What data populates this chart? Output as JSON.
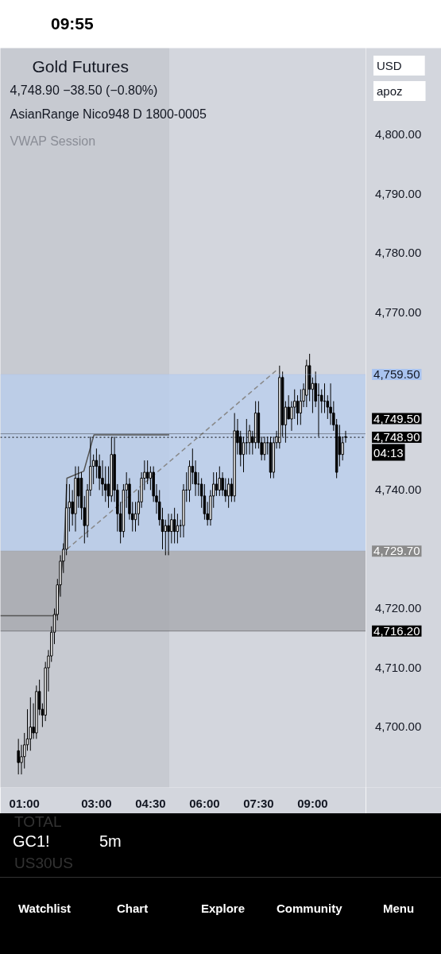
{
  "chart_data": {
    "type": "candlestick",
    "title": "Gold Futures",
    "subtitle": "4,748.90 −38.50 (−0.80%)",
    "annotations": [
      "AsianRange Nico948 D 1800-0005",
      "VWAP Session",
      "USD",
      "apoz",
      "04:13",
      "09:55",
      "TOTAL",
      "GC1!",
      "5m",
      "US30US",
      "Watchlist",
      "Chart",
      "Explore",
      "Community",
      "Menu"
    ],
    "x": [
      0.833,
      0.917,
      1.0,
      1.083,
      1.167,
      1.25,
      1.333,
      1.417,
      1.5,
      1.583,
      1.667,
      1.75,
      1.833,
      1.917,
      2.0,
      2.083,
      2.167,
      2.25,
      2.333,
      2.417,
      2.5,
      2.583,
      2.667,
      2.75,
      2.833,
      2.917,
      3.0,
      3.083,
      3.167,
      3.25,
      3.333,
      3.417,
      3.5,
      3.583,
      3.667,
      3.75,
      3.833,
      3.917,
      4.0,
      4.083,
      4.167,
      4.25,
      4.333,
      4.417,
      4.5,
      4.583,
      4.667,
      4.75,
      4.833,
      4.917,
      5.0,
      5.083,
      5.167,
      5.25,
      5.333,
      5.417,
      5.5,
      5.583,
      5.667,
      5.75,
      5.833,
      5.917,
      6.0,
      6.083,
      6.167,
      6.25,
      6.333,
      6.417,
      6.5,
      6.583,
      6.667,
      6.75,
      6.833,
      6.917,
      7.0,
      7.083,
      7.167,
      7.25,
      7.333,
      7.417,
      7.5,
      7.583,
      7.667,
      7.75,
      7.833,
      7.917,
      8.0,
      8.083,
      8.167,
      8.25,
      8.333,
      8.417,
      8.5,
      8.583,
      8.667,
      8.75,
      8.833,
      8.917,
      9.0,
      9.083,
      9.167,
      9.25,
      9.333,
      9.417,
      9.5,
      9.583,
      9.667,
      9.75,
      9.833,
      9.917
    ],
    "ohlc": [
      [
        4696,
        4698,
        4692,
        4694
      ],
      [
        4694,
        4697,
        4692,
        4695
      ],
      [
        4695,
        4699,
        4693,
        4697
      ],
      [
        4697,
        4703,
        4696,
        4698
      ],
      [
        4698,
        4705,
        4696,
        4700
      ],
      [
        4700,
        4704,
        4698,
        4699
      ],
      [
        4699,
        4707,
        4698,
        4706
      ],
      [
        4706,
        4708,
        4702,
        4703
      ],
      [
        4703,
        4704,
        4700,
        4702
      ],
      [
        4702,
        4711,
        4701,
        4710
      ],
      [
        4710,
        4713,
        4706,
        4712
      ],
      [
        4712,
        4717,
        4711,
        4716
      ],
      [
        4716,
        4720,
        4714,
        4719
      ],
      [
        4719,
        4725,
        4718,
        4724
      ],
      [
        4724,
        4729,
        4722,
        4728
      ],
      [
        4728,
        4731,
        4726,
        4730
      ],
      [
        4730,
        4741,
        4729,
        4737
      ],
      [
        4737,
        4741,
        4733,
        4738
      ],
      [
        4738,
        4740,
        4734,
        4736
      ],
      [
        4736,
        4744,
        4733,
        4742
      ],
      [
        4742,
        4744,
        4737,
        4739
      ],
      [
        4742,
        4743,
        4735,
        4737
      ],
      [
        4737,
        4739,
        4731,
        4734
      ],
      [
        4734,
        4741,
        4732,
        4740
      ],
      [
        4740,
        4749,
        4739,
        4744
      ],
      [
        4744,
        4746,
        4741,
        4745
      ],
      [
        4745,
        4747,
        4742,
        4744
      ],
      [
        4744,
        4746,
        4740,
        4742
      ],
      [
        4742,
        4745,
        4739,
        4741
      ],
      [
        4741,
        4744,
        4738,
        4740
      ],
      [
        4741,
        4744,
        4737,
        4739
      ],
      [
        4739,
        4749,
        4738,
        4746
      ],
      [
        4746,
        4749,
        4738,
        4740
      ],
      [
        4740,
        4741,
        4733,
        4736
      ],
      [
        4736,
        4738,
        4731,
        4733
      ],
      [
        4733,
        4741,
        4732,
        4740
      ],
      [
        4740,
        4743,
        4737,
        4741
      ],
      [
        4741,
        4742,
        4735,
        4736
      ],
      [
        4736,
        4738,
        4733,
        4735
      ],
      [
        4735,
        4738,
        4733,
        4736
      ],
      [
        4736,
        4740,
        4734,
        4738
      ],
      [
        4738,
        4743,
        4737,
        4742
      ],
      [
        4742,
        4745,
        4740,
        4743
      ],
      [
        4743,
        4745,
        4741,
        4742
      ],
      [
        4742,
        4744,
        4740,
        4743
      ],
      [
        4743,
        4744,
        4738,
        4739
      ],
      [
        4739,
        4741,
        4736,
        4738
      ],
      [
        4738,
        4740,
        4734,
        4735
      ],
      [
        4735,
        4737,
        4730,
        4733
      ],
      [
        4733,
        4735,
        4729,
        4734
      ],
      [
        4734,
        4736,
        4729,
        4733
      ],
      [
        4733,
        4736,
        4731,
        4735
      ],
      [
        4735,
        4737,
        4731,
        4733
      ],
      [
        4733,
        4736,
        4731,
        4734
      ],
      [
        4734,
        4735,
        4732,
        4734
      ],
      [
        4734,
        4741,
        4732,
        4740
      ],
      [
        4740,
        4743,
        4738,
        4740
      ],
      [
        4740,
        4745,
        4738,
        4744
      ],
      [
        4744,
        4747,
        4741,
        4743
      ],
      [
        4743,
        4745,
        4739,
        4741
      ],
      [
        4741,
        4743,
        4739,
        4741
      ],
      [
        4741,
        4742,
        4737,
        4739
      ],
      [
        4739,
        4741,
        4735,
        4736
      ],
      [
        4736,
        4738,
        4734,
        4735
      ],
      [
        4735,
        4740,
        4734,
        4739
      ],
      [
        4739,
        4743,
        4737,
        4741
      ],
      [
        4741,
        4743,
        4739,
        4740
      ],
      [
        4740,
        4744,
        4739,
        4742
      ],
      [
        4742,
        4743,
        4739,
        4740
      ],
      [
        4740,
        4742,
        4738,
        4739
      ],
      [
        4739,
        4742,
        4737,
        4741
      ],
      [
        4741,
        4742,
        4738,
        4739
      ],
      [
        4739,
        4753,
        4738,
        4750
      ],
      [
        4750,
        4752,
        4746,
        4748
      ],
      [
        4749,
        4750,
        4744,
        4746
      ],
      [
        4746,
        4749,
        4743,
        4748
      ],
      [
        4748,
        4752,
        4746,
        4748
      ],
      [
        4748,
        4751,
        4746,
        4750
      ],
      [
        4749,
        4750,
        4746,
        4748
      ],
      [
        4748,
        4755,
        4747,
        4753
      ],
      [
        4753,
        4755,
        4747,
        4748
      ],
      [
        4748,
        4749,
        4745,
        4746
      ],
      [
        4746,
        4749,
        4745,
        4748
      ],
      [
        4748,
        4749,
        4746,
        4748
      ],
      [
        4748,
        4749,
        4742,
        4743
      ],
      [
        4743,
        4749,
        4742,
        4748
      ],
      [
        4748,
        4750,
        4747,
        4749
      ],
      [
        4748,
        4761,
        4747,
        4759
      ],
      [
        4759,
        4760,
        4749,
        4751
      ],
      [
        4751,
        4755,
        4748,
        4754
      ],
      [
        4754,
        4756,
        4752,
        4752
      ],
      [
        4752,
        4755,
        4750,
        4754
      ],
      [
        4754,
        4757,
        4752,
        4755
      ],
      [
        4755,
        4756,
        4751,
        4753
      ],
      [
        4753,
        4757,
        4751,
        4755
      ],
      [
        4755,
        4758,
        4754,
        4757
      ],
      [
        4756,
        4762,
        4754,
        4761
      ],
      [
        4761,
        4763,
        4755,
        4757
      ],
      [
        4757,
        4759,
        4753,
        4758
      ],
      [
        4758,
        4760,
        4754,
        4755
      ],
      [
        4756,
        4758,
        4749,
        4756
      ],
      [
        4756,
        4757,
        4753,
        4755
      ],
      [
        4755,
        4758,
        4753,
        4755
      ],
      [
        4755,
        4756,
        4752,
        4754
      ],
      [
        4754,
        4758,
        4751,
        4753
      ],
      [
        4753,
        4755,
        4750,
        4751
      ],
      [
        4751,
        4752,
        4742,
        4743
      ],
      [
        4749,
        4751,
        4744,
        4746
      ],
      [
        4746,
        4749,
        4745,
        4748
      ],
      [
        4749,
        4750,
        4748,
        4748.9
      ]
    ],
    "color": "#000000",
    "series": [
      {
        "type": "line",
        "color": "#555555",
        "x": [
          0.333,
          1.88,
          2.1,
          2.18,
          2.65,
          2.93,
          5.02
        ],
        "values": [
          4718.8,
          4718.8,
          4730,
          4742,
          4743.2,
          4749.3,
          4749.3
        ]
      },
      {
        "type": "line",
        "line_style": "dashed",
        "color": "#888888",
        "x": [
          2.18,
          8.05
        ],
        "values": [
          4730,
          4760.5
        ]
      }
    ],
    "bands": [
      {
        "axis": "x",
        "from": 0.333,
        "to": 5.02,
        "color": "#c3c6cc"
      },
      {
        "axis": "y",
        "from": 4729.7,
        "to": 4759.5,
        "color": "#b8cdee"
      },
      {
        "axis": "y",
        "from": 4716.2,
        "to": 4729.7,
        "color": "#a4a6ab"
      }
    ],
    "ref_lines": [
      {
        "axis": "y",
        "value": 4759.5,
        "label": "4,759.50",
        "color": "#a9c3ef"
      },
      {
        "axis": "y",
        "value": 4749.5,
        "label": "4,749.50",
        "color": "#000000"
      },
      {
        "axis": "y",
        "value": 4748.9,
        "label": "4,748.90",
        "color": "#000000",
        "line_style": "dotted"
      },
      {
        "axis": "y",
        "value": 4729.7,
        "label": "4,729.70",
        "color": "#8a8a8a"
      },
      {
        "axis": "y",
        "value": 4716.2,
        "label": "4,716.20",
        "color": "#000000"
      }
    ],
    "xlim": [
      0.333,
      10.48
    ],
    "ylim": [
      4689.8,
      4814.6
    ],
    "xticks": [
      {
        "value": 1,
        "label": "01:00"
      },
      {
        "value": 3,
        "label": "03:00"
      },
      {
        "value": 4.5,
        "label": "04:30"
      },
      {
        "value": 6,
        "label": "06:00"
      },
      {
        "value": 7.5,
        "label": "07:30"
      },
      {
        "value": 9,
        "label": "09:00"
      }
    ],
    "yticks": [
      {
        "value": 4700,
        "label": "4,700.00"
      },
      {
        "value": 4710,
        "label": "4,710.00"
      },
      {
        "value": 4720,
        "label": "4,720.00"
      },
      {
        "value": 4730,
        "label": null
      },
      {
        "value": 4740,
        "label": "4,740.00"
      },
      {
        "value": 4750,
        "label": null
      },
      {
        "value": 4760,
        "label": null
      },
      {
        "value": 4770,
        "label": "4,770.00"
      },
      {
        "value": 4780,
        "label": "4,780.00"
      },
      {
        "value": 4790,
        "label": "4,790.00"
      },
      {
        "value": 4800,
        "label": "4,800.00"
      }
    ],
    "grid": false
  }
}
